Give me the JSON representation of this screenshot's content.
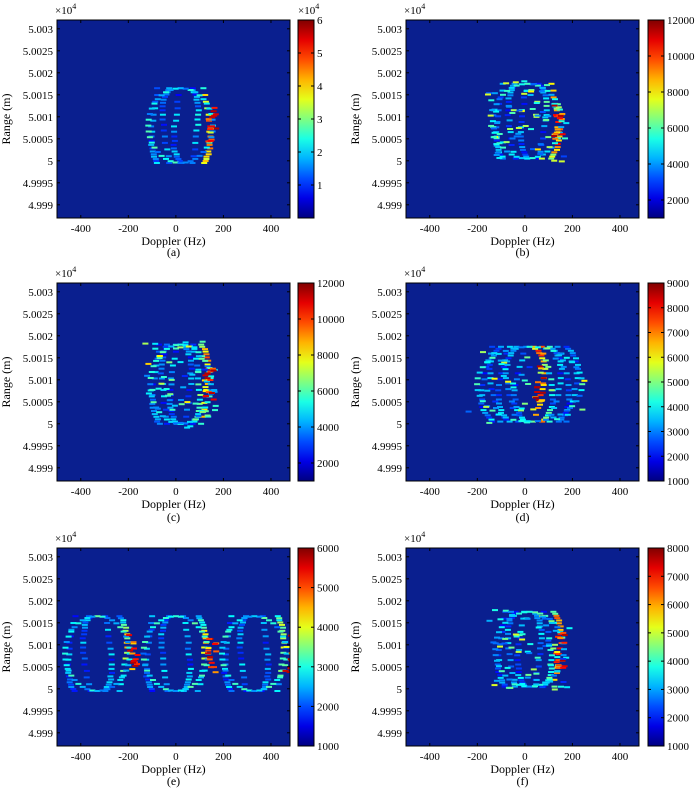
{
  "chart_data": [
    {
      "panel": "a",
      "caption": "(a)",
      "type": "heatmap",
      "xlabel": "Doppler (Hz)",
      "ylabel": "Range (m)",
      "y_multiplier": "×10^4",
      "xlim": [
        -500,
        480
      ],
      "ylim": [
        4.9987,
        5.0032
      ],
      "xticks": [
        -400,
        -200,
        0,
        200,
        400
      ],
      "yticks": [
        "4.999",
        "4.9995",
        "5",
        "5.0005",
        "5.001",
        "5.0015",
        "5.002",
        "5.0025",
        "5.003"
      ],
      "colorbar": {
        "range": [
          0,
          6
        ],
        "ticks": [
          "1",
          "2",
          "3",
          "4",
          "5",
          "6"
        ],
        "multiplier": "×10^4"
      },
      "pattern": {
        "kind": "cone",
        "cx": 20,
        "cy": 5.0008,
        "w": 160,
        "h": 0.0017,
        "hot_x": 150,
        "n_arcs": 5,
        "spread": 0
      }
    },
    {
      "panel": "b",
      "caption": "(b)",
      "type": "heatmap",
      "xlabel": "Doppler (Hz)",
      "ylabel": "Range (m)",
      "y_multiplier": "×10^4",
      "xlim": [
        -500,
        480
      ],
      "ylim": [
        4.9987,
        5.0032
      ],
      "xticks": [
        -400,
        -200,
        0,
        200,
        400
      ],
      "yticks": [
        "4.999",
        "4.9995",
        "5",
        "5.0005",
        "5.001",
        "5.0015",
        "5.002",
        "5.0025",
        "5.003"
      ],
      "colorbar": {
        "range": [
          1000,
          12000
        ],
        "ticks": [
          "2000",
          "4000",
          "6000",
          "8000",
          "10000",
          "12000"
        ],
        "multiplier": ""
      },
      "pattern": {
        "kind": "cone",
        "cx": 10,
        "cy": 5.0009,
        "w": 170,
        "h": 0.0017,
        "hot_x": 140,
        "n_arcs": 5,
        "spread": 0.6
      }
    },
    {
      "panel": "c",
      "caption": "(c)",
      "type": "heatmap",
      "xlabel": "Doppler (Hz)",
      "ylabel": "Range (m)",
      "y_multiplier": "×10^4",
      "xlim": [
        -500,
        480
      ],
      "ylim": [
        4.9987,
        5.0032
      ],
      "xticks": [
        -400,
        -200,
        0,
        200,
        400
      ],
      "yticks": [
        "4.999",
        "4.9995",
        "5",
        "5.0005",
        "5.001",
        "5.0015",
        "5.002",
        "5.0025",
        "5.003"
      ],
      "colorbar": {
        "range": [
          1000,
          12000
        ],
        "ticks": [
          "2000",
          "4000",
          "6000",
          "8000",
          "10000",
          "12000"
        ],
        "multiplier": ""
      },
      "pattern": {
        "kind": "cone",
        "cx": 20,
        "cy": 5.0009,
        "w": 150,
        "h": 0.0018,
        "hot_x": 140,
        "n_arcs": 6,
        "spread": 0.5
      }
    },
    {
      "panel": "d",
      "caption": "(d)",
      "type": "heatmap",
      "xlabel": "Doppler (Hz)",
      "ylabel": "Range (m)",
      "y_multiplier": "×10^4",
      "xlim": [
        -500,
        480
      ],
      "ylim": [
        4.9987,
        5.0032
      ],
      "xticks": [
        -400,
        -200,
        0,
        200,
        400
      ],
      "yticks": [
        "4.999",
        "4.9995",
        "5",
        "5.0005",
        "5.001",
        "5.0015",
        "5.002",
        "5.0025",
        "5.003"
      ],
      "colorbar": {
        "range": [
          1000,
          9000
        ],
        "ticks": [
          "1000",
          "2000",
          "3000",
          "4000",
          "5000",
          "6000",
          "7000",
          "8000",
          "9000"
        ],
        "multiplier": ""
      },
      "pattern": {
        "kind": "cone",
        "cx": 20,
        "cy": 5.0009,
        "w": 260,
        "h": 0.0017,
        "hot_x": 60,
        "n_arcs": 10,
        "spread": 0.3
      }
    },
    {
      "panel": "e",
      "caption": "(e)",
      "type": "heatmap",
      "xlabel": "Doppler (Hz)",
      "ylabel": "Range (m)",
      "y_multiplier": "×10^4",
      "xlim": [
        -500,
        480
      ],
      "ylim": [
        4.9987,
        5.0032
      ],
      "xticks": [
        -400,
        -200,
        0,
        200,
        400
      ],
      "yticks": [
        "4.999",
        "4.9995",
        "5",
        "5.0005",
        "5.001",
        "5.0015",
        "5.002",
        "5.0025",
        "5.003"
      ],
      "colorbar": {
        "range": [
          1000,
          6000
        ],
        "ticks": [
          "1000",
          "2000",
          "3000",
          "4000",
          "5000",
          "6000"
        ],
        "multiplier": ""
      },
      "pattern": {
        "kind": "multi",
        "cx": 0,
        "cy": 5.0008,
        "w": 160,
        "h": 0.0017,
        "hot_x": 150,
        "n_arcs": 4,
        "spread": 0,
        "centers": [
          -330,
          0,
          330
        ]
      }
    },
    {
      "panel": "f",
      "caption": "(f)",
      "type": "heatmap",
      "xlabel": "Doppler (Hz)",
      "ylabel": "Range (m)",
      "y_multiplier": "×10^4",
      "xlim": [
        -500,
        480
      ],
      "ylim": [
        4.9987,
        5.0032
      ],
      "xticks": [
        -400,
        -200,
        0,
        200,
        400
      ],
      "yticks": [
        "4.999",
        "4.9995",
        "5",
        "5.0005",
        "5.001",
        "5.0015",
        "5.002",
        "5.0025",
        "5.003"
      ],
      "colorbar": {
        "range": [
          1000,
          8000
        ],
        "ticks": [
          "1000",
          "2000",
          "3000",
          "4000",
          "5000",
          "6000",
          "7000",
          "8000"
        ],
        "multiplier": ""
      },
      "pattern": {
        "kind": "cone",
        "cx": 20,
        "cy": 5.0009,
        "w": 170,
        "h": 0.0017,
        "hot_x": 150,
        "n_arcs": 6,
        "spread": 0.5
      }
    }
  ],
  "colors": {
    "background": "#0a1f8f",
    "jet": [
      "#00008f",
      "#0000ff",
      "#00ffff",
      "#ffff00",
      "#ff0000",
      "#800000"
    ]
  }
}
